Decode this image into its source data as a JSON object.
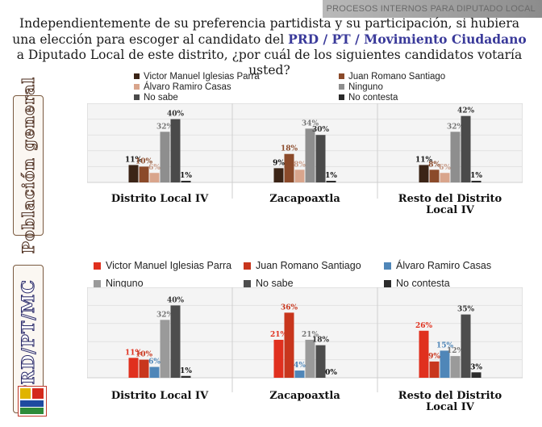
{
  "header": {
    "tag": "PROCESOS INTERNOS PARA DIPUTADO LOCAL"
  },
  "question": {
    "part1": "Independientemente de su preferencia partidista y su participación, si hubiera una elección para escoger al candidato del ",
    "highlight": "PRD / PT / Movimiento Ciudadano",
    "part2": " a Diputado Local de este distrito, ¿por cuál de los siguientes candidatos votaría usted?"
  },
  "side_labels": {
    "top": "Población general",
    "bottom": "PRD/PT/MC"
  },
  "logo": {
    "name": "coalition-logo"
  },
  "chart_data": [
    {
      "type": "bar",
      "title": "Población general",
      "categories": [
        "Distrito Local IV",
        "Zacapoaxtla",
        "Resto del Distrito Local IV"
      ],
      "series": [
        {
          "name": "Victor Manuel Iglesias Parra",
          "color": "#3b2416",
          "values": [
            11,
            9,
            11
          ]
        },
        {
          "name": "Juan Romano Santiago",
          "color": "#8b4a2a",
          "values": [
            10,
            18,
            8
          ]
        },
        {
          "name": "Álvaro Ramiro Casas",
          "color": "#d9a58c",
          "values": [
            6,
            8,
            6
          ]
        },
        {
          "name": "Ninguno",
          "color": "#8e8e8e",
          "values": [
            32,
            34,
            32
          ]
        },
        {
          "name": "No sabe",
          "color": "#4a4a4a",
          "values": [
            40,
            30,
            42
          ]
        },
        {
          "name": "No contesta",
          "color": "#2a2a2a",
          "values": [
            1,
            1,
            1
          ]
        }
      ],
      "ylim": [
        0,
        50
      ],
      "legend": "top"
    },
    {
      "type": "bar",
      "title": "PRD/PT/MC",
      "categories": [
        "Distrito Local IV",
        "Zacapoaxtla",
        "Resto del Distrito Local IV"
      ],
      "series": [
        {
          "name": "Victor Manuel Iglesias Parra",
          "color": "#e0301e",
          "values": [
            11,
            21,
            26
          ]
        },
        {
          "name": "Juan Romano Santiago",
          "color": "#c8361d",
          "values": [
            10,
            36,
            9
          ]
        },
        {
          "name": "Álvaro Ramiro Casas",
          "color": "#4f86b8",
          "values": [
            6,
            4,
            15
          ]
        },
        {
          "name": "Ninguno",
          "color": "#9a9a9a",
          "values": [
            32,
            21,
            12
          ]
        },
        {
          "name": "No sabe",
          "color": "#4d4d4d",
          "values": [
            40,
            18,
            35
          ]
        },
        {
          "name": "No contesta",
          "color": "#2b2b2b",
          "values": [
            1,
            0,
            3
          ]
        }
      ],
      "ylim": [
        0,
        50
      ],
      "legend": "top"
    }
  ]
}
